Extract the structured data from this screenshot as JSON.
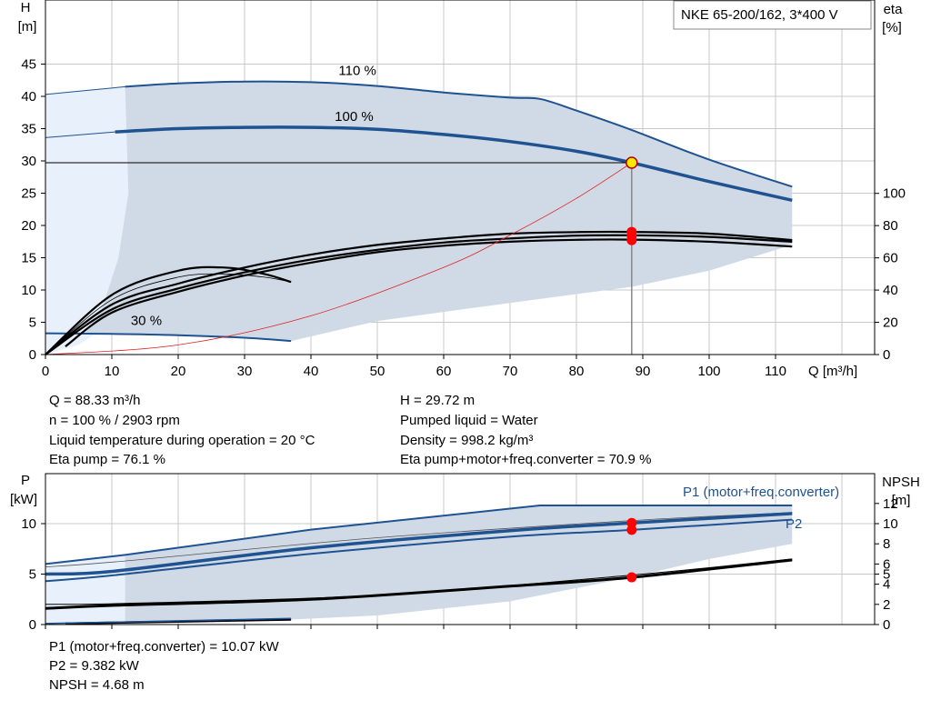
{
  "title_box": "NKE 65-200/162, 3*400 V",
  "colors": {
    "grid": "#c8c8c8",
    "band": "#d0dae6",
    "band_light": "#e8f1fb",
    "curve_blue": "#1f5291",
    "system_curve": "#e02020",
    "op_point_fill": "#ffe800",
    "marker_red": "#ff0000"
  },
  "op_info": {
    "left": [
      "Q = 88.33 m³/h",
      "n = 100 % / 2903 rpm",
      "Liquid temperature during operation = 20 °C",
      "Eta pump = 76.1 %"
    ],
    "right": [
      "H = 29.72 m",
      "Pumped liquid = Water",
      "Density = 998.2 kg/m³",
      "Eta pump+motor+freq.converter = 70.9 %"
    ]
  },
  "power_info": [
    "P1 (motor+freq.converter) = 10.07 kW",
    "P2 = 9.382 kW",
    "NPSH = 4.68 m"
  ],
  "chart_data": [
    {
      "type": "line",
      "name": "QH",
      "xlabel": "Q [m³/h]",
      "ylabel": "H\n[m]",
      "y2label": "eta\n[%]",
      "xlim": [
        0,
        120
      ],
      "ylim": [
        0,
        50
      ],
      "y2lim": [
        0,
        120
      ],
      "x_ticks": [
        0,
        10,
        20,
        30,
        40,
        50,
        60,
        70,
        80,
        90,
        100,
        110
      ],
      "y_ticks": [
        0,
        5,
        10,
        15,
        20,
        25,
        30,
        35,
        40,
        45
      ],
      "y2_ticks": [
        0,
        20,
        40,
        60,
        80,
        100
      ],
      "grid": true,
      "head_curves": [
        {
          "label": "110 %",
          "points": [
            [
              0,
              40.3
            ],
            [
              12,
              41.5
            ],
            [
              20,
              42.0
            ],
            [
              30,
              42.3
            ],
            [
              40,
              42.2
            ],
            [
              50,
              41.6
            ],
            [
              60,
              40.6
            ],
            [
              70,
              39.8
            ],
            [
              74.5,
              39.6
            ],
            [
              80,
              37.8
            ],
            [
              88.3,
              34.8
            ],
            [
              100,
              30.2
            ],
            [
              112.5,
              26.0
            ]
          ]
        },
        {
          "label": "100 %",
          "points": [
            [
              0,
              33.6
            ],
            [
              10.5,
              34.5
            ],
            [
              20,
              35.0
            ],
            [
              30,
              35.2
            ],
            [
              40,
              35.2
            ],
            [
              50,
              34.9
            ],
            [
              60,
              34.1
            ],
            [
              70,
              33.0
            ],
            [
              80,
              31.5
            ],
            [
              88.33,
              29.72
            ],
            [
              100,
              26.8
            ],
            [
              112.5,
              23.9
            ]
          ]
        },
        {
          "label": "30 %",
          "points": [
            [
              0,
              3.3
            ],
            [
              10,
              3.2
            ],
            [
              20,
              3.0
            ],
            [
              30,
              2.6
            ],
            [
              37,
              2.1
            ]
          ]
        }
      ],
      "eta_curves_pct": [
        {
          "points": [
            [
              0,
              0
            ],
            [
              10,
              31
            ],
            [
              20,
              44
            ],
            [
              30,
              54
            ],
            [
              40,
              62
            ],
            [
              50,
              68
            ],
            [
              60,
              72
            ],
            [
              70,
              75
            ],
            [
              80,
              76
            ],
            [
              88.33,
              76.1
            ],
            [
              100,
              75
            ],
            [
              112.5,
              71
            ]
          ]
        },
        {
          "points": [
            [
              0,
              0
            ],
            [
              10,
              28
            ],
            [
              20,
              41
            ],
            [
              30,
              51
            ],
            [
              40,
              59
            ],
            [
              50,
              65
            ],
            [
              60,
              69.5
            ],
            [
              70,
              72
            ],
            [
              80,
              73.8
            ],
            [
              88.33,
              74
            ],
            [
              100,
              73
            ],
            [
              112.5,
              70
            ]
          ]
        },
        {
          "points": [
            [
              3,
              5
            ],
            [
              10,
              26
            ],
            [
              20,
              39
            ],
            [
              30,
              49
            ],
            [
              40,
              57
            ],
            [
              50,
              63.5
            ],
            [
              60,
              67.5
            ],
            [
              70,
              70
            ],
            [
              80,
              71.2
            ],
            [
              88.33,
              71.3
            ],
            [
              100,
              70
            ],
            [
              112.5,
              67
            ]
          ]
        },
        {
          "points": [
            [
              0,
              0
            ],
            [
              10,
              34
            ],
            [
              20,
              48
            ],
            [
              27,
              50
            ],
            [
              33,
              48
            ],
            [
              37,
              45
            ]
          ]
        },
        {
          "points": [
            [
              0,
              0
            ],
            [
              10,
              37
            ],
            [
              20,
              52
            ],
            [
              27,
              54
            ],
            [
              33,
              50
            ],
            [
              37,
              45
            ]
          ]
        }
      ],
      "system_curve": {
        "points": [
          [
            0,
            0
          ],
          [
            20,
            1.5
          ],
          [
            40,
            6
          ],
          [
            60,
            13.5
          ],
          [
            70,
            18.5
          ],
          [
            80,
            24.2
          ],
          [
            88.33,
            29.72
          ]
        ]
      },
      "operating_point": {
        "q": 88.33,
        "h": 29.72
      },
      "eta_markers_pct": [
        76.1,
        73.5,
        70.9
      ]
    },
    {
      "type": "line",
      "name": "Power/NPSH",
      "ylabel": "P\n[kW]",
      "y2label": "NPSH\n[m]",
      "xlim": [
        0,
        120
      ],
      "ylim": [
        0,
        12.5
      ],
      "y2lim": [
        0,
        12.5
      ],
      "y_ticks": [
        0,
        5,
        10
      ],
      "y2_ticks": [
        0,
        2,
        4,
        5,
        6,
        8,
        10,
        12
      ],
      "series_labels": {
        "p1": "P1 (motor+freq.converter)",
        "p2": "P2"
      },
      "p1_band_top": [
        [
          0,
          6.0
        ],
        [
          12,
          6.9
        ],
        [
          40,
          9.4
        ],
        [
          74.5,
          11.8
        ],
        [
          88.33,
          11.8
        ],
        [
          112.5,
          11.8
        ]
      ],
      "p1_100": [
        [
          0,
          5.0
        ],
        [
          10.5,
          5.3
        ],
        [
          40,
          7.6
        ],
        [
          70,
          9.3
        ],
        [
          88.33,
          10.07
        ],
        [
          112.5,
          11.0
        ]
      ],
      "p2_100": [
        [
          0,
          4.3
        ],
        [
          10.5,
          4.9
        ],
        [
          40,
          7.0
        ],
        [
          70,
          8.7
        ],
        [
          88.33,
          9.382
        ],
        [
          112.5,
          10.4
        ]
      ],
      "npsh": [
        [
          0,
          1.6
        ],
        [
          10.5,
          1.9
        ],
        [
          40,
          2.5
        ],
        [
          70,
          3.8
        ],
        [
          88.33,
          4.68
        ],
        [
          112.5,
          6.4
        ]
      ],
      "low_line": [
        [
          3,
          0.1
        ],
        [
          20,
          0.3
        ],
        [
          37,
          0.5
        ]
      ],
      "markers": {
        "p1": 10.07,
        "p2": 9.382,
        "npsh": 4.68
      }
    }
  ]
}
